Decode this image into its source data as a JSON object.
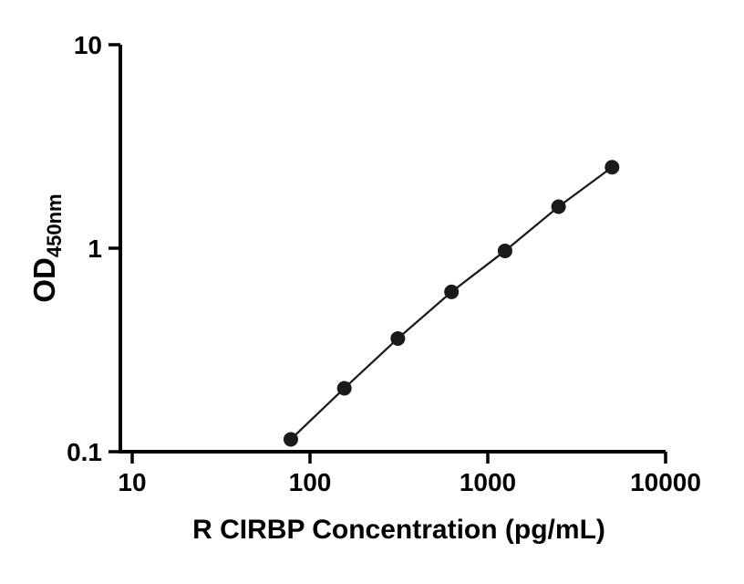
{
  "chart_data": {
    "type": "scatter",
    "title": "",
    "xlabel": "R CIRBP Concentration (pg/mL)",
    "ylabel_main": "OD",
    "ylabel_sub": "450nm",
    "x_scale": "log",
    "y_scale": "log",
    "xlim": [
      10,
      10000
    ],
    "ylim": [
      0.1,
      10
    ],
    "x_ticks": [
      10,
      100,
      1000,
      10000
    ],
    "x_tick_labels": [
      "10",
      "100",
      "1000",
      "10000"
    ],
    "y_ticks": [
      0.1,
      1,
      10
    ],
    "y_tick_labels": [
      "0.1",
      "1",
      "10"
    ],
    "points": [
      {
        "x": 78,
        "y": 0.115
      },
      {
        "x": 156,
        "y": 0.205
      },
      {
        "x": 312,
        "y": 0.36
      },
      {
        "x": 625,
        "y": 0.61
      },
      {
        "x": 1250,
        "y": 0.97
      },
      {
        "x": 2500,
        "y": 1.6
      },
      {
        "x": 5000,
        "y": 2.5
      }
    ],
    "line_between_points": true,
    "grid": false,
    "legend": false,
    "marker_color": "#1a1a1a",
    "line_color": "#1a1a1a",
    "axis_color": "#000000",
    "background": "#ffffff"
  }
}
